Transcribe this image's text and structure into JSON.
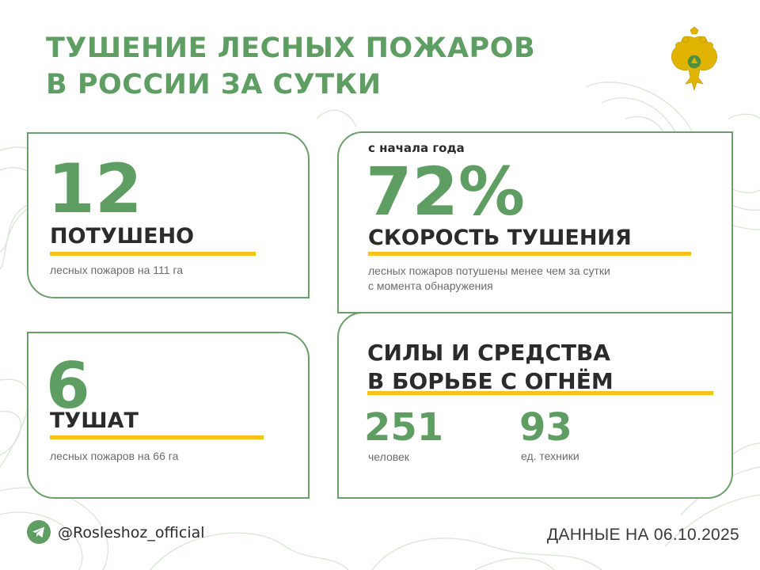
{
  "title": {
    "line1": "ТУШЕНИЕ ЛЕСНЫХ ПОЖАРОВ",
    "line2": "В РОССИИ ЗА СУТКИ"
  },
  "extinguished": {
    "number": "12",
    "label": "ПОТУШЕНО",
    "detail": "лесных пожаров на 111 га"
  },
  "active": {
    "number": "6",
    "label": "ТУШАТ",
    "detail": "лесных пожаров на 66 га"
  },
  "speed": {
    "caption": "с начала года",
    "percent": "72%",
    "label": "СКОРОСТЬ ТУШЕНИЯ",
    "detail_line1": "лесных пожаров потушены менее чем за сутки",
    "detail_line2": "с момента обнаружения"
  },
  "forces": {
    "heading_line1": "СИЛЫ И СРЕДСТВА",
    "heading_line2": "В БОРЬБЕ С ОГНЁМ",
    "people_count": "251",
    "people_label": "человек",
    "equipment_count": "93",
    "equipment_label": "ед. техники"
  },
  "footer": {
    "handle": "@Rosleshoz_official",
    "date": "ДАННЫЕ НА 06.10.2025"
  },
  "colors": {
    "accent_green": "#5f9e63",
    "border_green": "#6b9e6a",
    "highlight_yellow": "#f2c318",
    "emblem_gold": "#e0b400"
  },
  "icons": {
    "messenger": "telegram-icon",
    "emblem": "double-headed-eagle-emblem"
  }
}
